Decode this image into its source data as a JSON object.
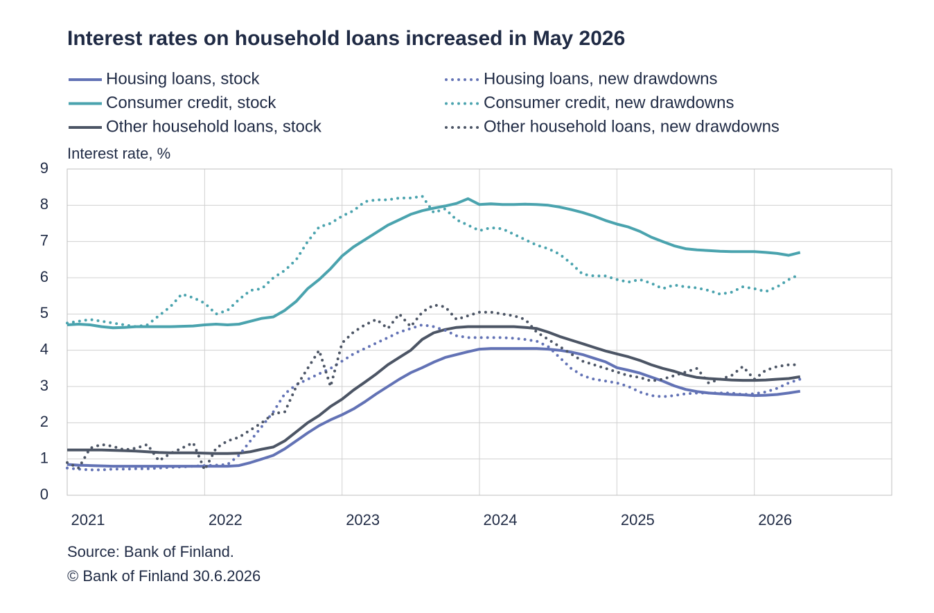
{
  "chart_data": {
    "type": "line",
    "title": "Interest rates on household loans increased in May 2026",
    "y_label": "Interest rate, %",
    "source": "Source: Bank of Finland.",
    "copyright": "© Bank of Finland 30.6.2026",
    "categories": [
      "2021",
      null,
      null,
      null,
      null,
      null,
      null,
      null,
      null,
      null,
      null,
      null,
      "2022",
      null,
      null,
      null,
      null,
      null,
      null,
      null,
      null,
      null,
      null,
      null,
      "2023",
      null,
      null,
      null,
      null,
      null,
      null,
      null,
      null,
      null,
      null,
      null,
      "2024",
      null,
      null,
      null,
      null,
      null,
      null,
      null,
      null,
      null,
      null,
      null,
      "2025",
      null,
      null,
      null,
      null,
      null,
      null,
      null,
      null,
      null,
      null,
      null,
      "2026",
      null,
      null,
      null,
      null,
      null,
      null,
      null,
      null,
      null,
      null,
      null
    ],
    "ylim": [
      0,
      9
    ],
    "yticks": [
      0,
      1,
      2,
      3,
      4,
      5,
      6,
      7,
      8,
      9
    ],
    "grid": true,
    "series": [
      {
        "name": "Housing loans, stock",
        "color": "#6272b5",
        "style": "solid",
        "values": [
          0.85,
          0.83,
          0.82,
          0.81,
          0.8,
          0.8,
          0.8,
          0.8,
          0.8,
          0.8,
          0.8,
          0.8,
          0.8,
          0.8,
          0.8,
          0.82,
          0.9,
          1.0,
          1.1,
          1.28,
          1.5,
          1.72,
          1.92,
          2.08,
          2.22,
          2.38,
          2.58,
          2.8,
          3.0,
          3.2,
          3.38,
          3.52,
          3.67,
          3.8,
          3.88,
          3.96,
          4.03,
          4.05,
          4.05,
          4.05,
          4.05,
          4.05,
          4.03,
          4.0,
          3.95,
          3.88,
          3.78,
          3.68,
          3.52,
          3.45,
          3.37,
          3.26,
          3.15,
          3.02,
          2.92,
          2.86,
          2.82,
          2.8,
          2.78,
          2.77,
          2.75,
          2.76,
          2.78,
          2.82,
          2.87,
          null,
          null,
          null,
          null,
          null,
          null,
          null
        ]
      },
      {
        "name": "Consumer credit, stock",
        "color": "#4aa3ae",
        "style": "solid",
        "values": [
          4.7,
          4.72,
          4.7,
          4.65,
          4.62,
          4.63,
          4.65,
          4.65,
          4.65,
          4.65,
          4.66,
          4.67,
          4.7,
          4.72,
          4.7,
          4.72,
          4.8,
          4.88,
          4.92,
          5.1,
          5.35,
          5.7,
          5.95,
          6.25,
          6.6,
          6.85,
          7.05,
          7.25,
          7.45,
          7.6,
          7.75,
          7.85,
          7.92,
          7.98,
          8.05,
          8.18,
          8.02,
          8.04,
          8.02,
          8.02,
          8.03,
          8.02,
          8.0,
          7.95,
          7.88,
          7.8,
          7.7,
          7.58,
          7.48,
          7.4,
          7.28,
          7.12,
          7.0,
          6.88,
          6.8,
          6.77,
          6.75,
          6.73,
          6.72,
          6.72,
          6.72,
          6.7,
          6.67,
          6.62,
          6.7,
          null,
          null,
          null,
          null,
          null,
          null,
          null
        ]
      },
      {
        "name": "Other household loans, stock",
        "color": "#4c5565",
        "style": "solid",
        "values": [
          1.25,
          1.25,
          1.25,
          1.25,
          1.24,
          1.23,
          1.22,
          1.2,
          1.18,
          1.17,
          1.17,
          1.17,
          1.16,
          1.15,
          1.15,
          1.16,
          1.2,
          1.27,
          1.33,
          1.5,
          1.75,
          2.0,
          2.2,
          2.45,
          2.65,
          2.9,
          3.12,
          3.35,
          3.6,
          3.8,
          4.0,
          4.3,
          4.48,
          4.57,
          4.63,
          4.65,
          4.65,
          4.65,
          4.65,
          4.65,
          4.63,
          4.6,
          4.5,
          4.38,
          4.28,
          4.18,
          4.08,
          3.98,
          3.9,
          3.82,
          3.72,
          3.6,
          3.5,
          3.42,
          3.32,
          3.25,
          3.22,
          3.2,
          3.18,
          3.17,
          3.17,
          3.18,
          3.2,
          3.22,
          3.27,
          null,
          null,
          null,
          null,
          null,
          null,
          null
        ]
      },
      {
        "name": "Housing loans, new drawdowns",
        "color": "#6272b5",
        "style": "dotted",
        "values": [
          0.75,
          0.72,
          0.7,
          0.7,
          0.72,
          0.72,
          0.73,
          0.73,
          0.75,
          0.77,
          0.78,
          0.8,
          0.82,
          0.83,
          0.85,
          1.1,
          1.5,
          1.9,
          2.3,
          2.8,
          3.05,
          3.2,
          3.35,
          3.5,
          3.7,
          3.9,
          4.05,
          4.2,
          4.35,
          4.5,
          4.6,
          4.7,
          4.65,
          4.55,
          4.4,
          4.35,
          4.35,
          4.35,
          4.35,
          4.33,
          4.3,
          4.25,
          4.1,
          3.8,
          3.5,
          3.3,
          3.2,
          3.15,
          3.1,
          3.0,
          2.85,
          2.75,
          2.72,
          2.75,
          2.8,
          2.82,
          2.82,
          2.82,
          2.82,
          2.78,
          2.8,
          2.85,
          2.95,
          3.1,
          3.2,
          null,
          null,
          null,
          null,
          null,
          null,
          null
        ]
      },
      {
        "name": "Consumer credit, new drawdowns",
        "color": "#4aa3ae",
        "style": "dotted",
        "values": [
          4.75,
          4.8,
          4.85,
          4.8,
          4.75,
          4.7,
          4.65,
          4.7,
          4.95,
          5.2,
          5.55,
          5.45,
          5.3,
          5.0,
          5.1,
          5.4,
          5.65,
          5.7,
          6.0,
          6.2,
          6.5,
          7.0,
          7.4,
          7.5,
          7.7,
          7.85,
          8.1,
          8.15,
          8.15,
          8.2,
          8.2,
          8.25,
          7.8,
          7.9,
          7.6,
          7.45,
          7.3,
          7.38,
          7.35,
          7.2,
          7.05,
          6.9,
          6.8,
          6.65,
          6.4,
          6.1,
          6.05,
          6.05,
          5.95,
          5.88,
          5.95,
          5.85,
          5.7,
          5.8,
          5.75,
          5.72,
          5.65,
          5.55,
          5.6,
          5.75,
          5.7,
          5.62,
          5.75,
          5.95,
          6.1,
          null,
          null,
          null,
          null,
          null,
          null,
          null
        ]
      },
      {
        "name": "Other household loans, new drawdowns",
        "color": "#4c5565",
        "style": "dotted",
        "values": [
          0.9,
          0.75,
          1.3,
          1.4,
          1.35,
          1.25,
          1.3,
          1.4,
          0.95,
          1.15,
          1.3,
          1.45,
          0.7,
          1.3,
          1.5,
          1.6,
          1.8,
          2.0,
          2.25,
          2.3,
          3.0,
          3.5,
          4.0,
          3.0,
          4.2,
          4.5,
          4.7,
          4.85,
          4.6,
          5.0,
          4.65,
          5.05,
          5.25,
          5.2,
          4.85,
          4.95,
          5.05,
          5.05,
          5.0,
          4.95,
          4.85,
          4.5,
          4.3,
          4.1,
          3.9,
          3.7,
          3.6,
          3.5,
          3.4,
          3.3,
          3.25,
          3.15,
          3.2,
          3.3,
          3.4,
          3.5,
          3.1,
          3.2,
          3.3,
          3.55,
          3.2,
          3.45,
          3.55,
          3.6,
          3.6,
          null,
          null,
          null,
          null,
          null,
          null,
          null
        ]
      }
    ]
  }
}
